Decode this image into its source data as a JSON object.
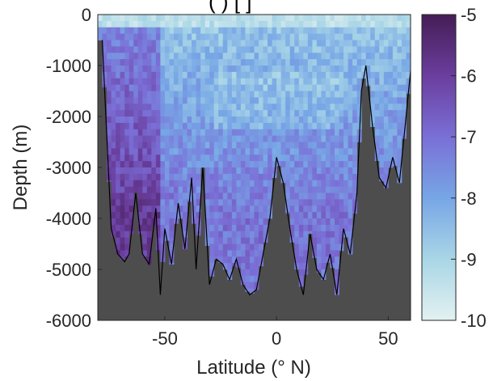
{
  "chart_data": {
    "type": "heatmap",
    "title_fragment": "( ) [ ]",
    "xlabel": "Latitude (° N)",
    "ylabel": "Depth (m)",
    "xlim": [
      -80,
      60
    ],
    "ylim": [
      -6000,
      0
    ],
    "x_ticks": [
      -50,
      0,
      50
    ],
    "x_tick_labels": [
      "-50",
      "0",
      "50"
    ],
    "y_ticks": [
      0,
      -1000,
      -2000,
      -3000,
      -4000,
      -5000,
      -6000
    ],
    "y_tick_labels": [
      "0",
      "-1000",
      "-2000",
      "-3000",
      "-4000",
      "-5000",
      "-6000"
    ],
    "colorbar": {
      "range": [
        -10,
        -5
      ],
      "ticks": [
        -5,
        -6,
        -7,
        -8,
        -9,
        -10
      ],
      "tick_labels": [
        "-5",
        "-6",
        "-7",
        "-8",
        "-9",
        "-10"
      ],
      "colors": [
        "#e3f1f1",
        "#a9d6e6",
        "#77a6e6",
        "#7a6fd6",
        "#6a3e9e",
        "#451d55"
      ]
    },
    "land_color": "#4d4d4d",
    "bottom_topography": {
      "lat": [
        -78,
        -74,
        -71,
        -68,
        -66,
        -63,
        -60,
        -57,
        -54,
        -52,
        -50,
        -47,
        -44,
        -41,
        -38,
        -36,
        -33,
        -30,
        -27,
        -24,
        -21,
        -18,
        -15,
        -12,
        -9,
        -6,
        -3,
        0,
        3,
        6,
        9,
        12,
        15,
        18,
        21,
        24,
        27,
        30,
        33,
        36,
        38,
        40,
        43,
        46,
        49,
        52,
        55,
        58,
        60
      ],
      "depth": [
        -500,
        -4200,
        -4700,
        -4850,
        -4700,
        -3500,
        -4700,
        -4900,
        -3800,
        -5500,
        -4200,
        -4900,
        -3700,
        -4600,
        -3200,
        -5000,
        -3000,
        -5300,
        -4800,
        -4900,
        -5200,
        -4800,
        -5300,
        -5500,
        -5400,
        -4700,
        -4000,
        -2800,
        -3300,
        -4200,
        -5000,
        -5500,
        -4300,
        -5000,
        -5200,
        -4700,
        -5500,
        -4200,
        -4700,
        -3500,
        -1500,
        -1000,
        -2200,
        -3200,
        -3400,
        -2800,
        -3300,
        -2000,
        -1100
      ]
    }
  }
}
